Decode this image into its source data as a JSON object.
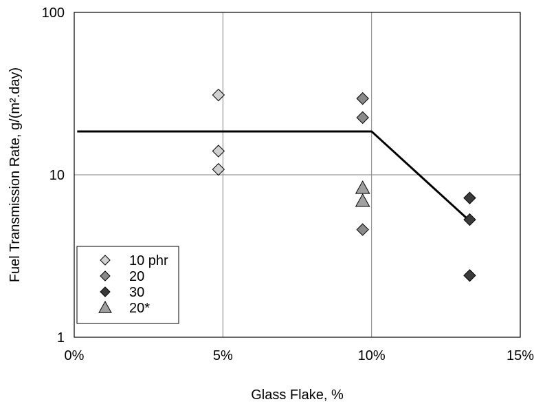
{
  "chart_data": {
    "type": "scatter",
    "title": "",
    "xlabel": "Glass Flake, %",
    "ylabel": "Fuel Transmission Rate, g/(m².day)",
    "xlim": [
      0,
      15
    ],
    "ylim": [
      1,
      100
    ],
    "y_scale": "log",
    "grid": true,
    "legend_position": "bottom-left",
    "x_ticks": [
      0,
      5,
      10,
      15
    ],
    "x_tick_labels": [
      "0%",
      "5%",
      "10%",
      "15%"
    ],
    "y_ticks": [
      1,
      10,
      100
    ],
    "y_tick_labels": [
      "1",
      "10",
      "100"
    ],
    "series": [
      {
        "name": "10 phr",
        "marker": "diamond",
        "color": "#d0d0d0",
        "x": [
          4.85,
          4.85,
          4.85
        ],
        "y": [
          31,
          14,
          10.8
        ]
      },
      {
        "name": "20",
        "marker": "diamond",
        "color": "#8a8a8a",
        "x": [
          9.7,
          9.7,
          9.7
        ],
        "y": [
          29.5,
          22.5,
          4.6
        ]
      },
      {
        "name": "30",
        "marker": "diamond",
        "color": "#3a3a3a",
        "x": [
          13.3,
          13.3,
          13.3
        ],
        "y": [
          7.2,
          5.3,
          2.4
        ]
      },
      {
        "name": "20*",
        "marker": "triangle",
        "color": "#a0a0a0",
        "x": [
          9.7,
          9.7
        ],
        "y": [
          8.3,
          6.9
        ]
      }
    ],
    "trend_line": {
      "x": [
        0.1,
        10,
        13.3
      ],
      "y": [
        18.5,
        18.5,
        5.2
      ],
      "color": "#000000"
    }
  }
}
